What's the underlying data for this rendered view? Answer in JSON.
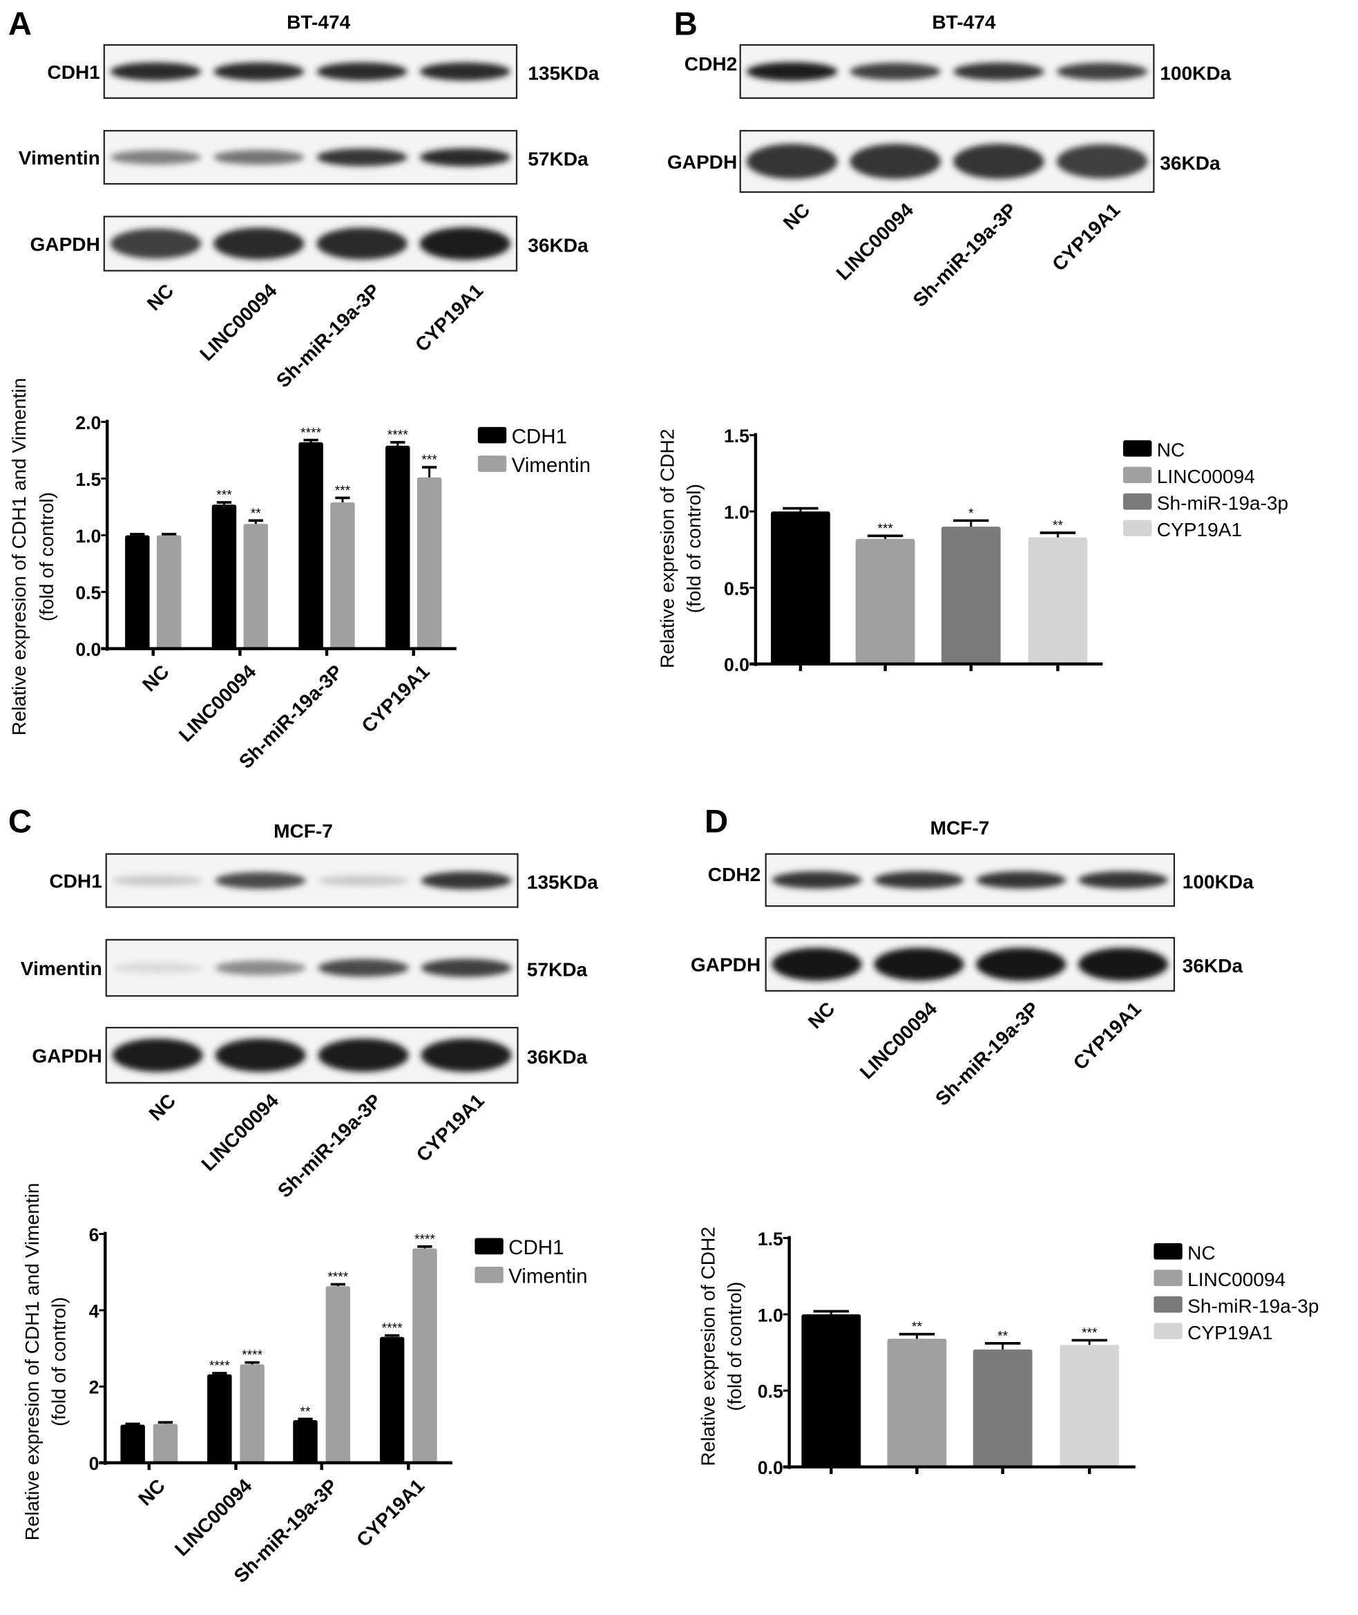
{
  "panels": [
    {
      "letter": "A",
      "title": "BT-474",
      "lanes": [
        "NC",
        "LINC00094",
        "Sh-miR-19a-3P",
        "CYP19A1"
      ],
      "blots": [
        {
          "protein": "CDH1",
          "kda": "135KDa",
          "intensity": [
            0.9,
            0.9,
            0.9,
            0.9
          ]
        },
        {
          "protein": "Vimentin",
          "kda": "57KDa",
          "intensity": [
            0.5,
            0.55,
            0.85,
            0.9
          ]
        },
        {
          "protein": "GAPDH",
          "kda": "36KDa",
          "intensity": [
            0.8,
            0.9,
            0.9,
            0.95
          ]
        }
      ]
    },
    {
      "letter": "B",
      "title": "BT-474",
      "lanes": [
        "NC",
        "LINC00094",
        "Sh-miR-19a-3P",
        "CYP19A1"
      ],
      "blots": [
        {
          "protein": "CDH2",
          "kda": "100KDa",
          "intensity": [
            0.95,
            0.8,
            0.85,
            0.8
          ]
        },
        {
          "protein": "GAPDH",
          "kda": "36KDa",
          "intensity": [
            0.85,
            0.85,
            0.85,
            0.8
          ]
        }
      ]
    },
    {
      "letter": "C",
      "title": "MCF-7",
      "lanes": [
        "NC",
        "LINC00094",
        "Sh-miR-19a-3P",
        "CYP19A1"
      ],
      "blots": [
        {
          "protein": "CDH1",
          "kda": "135KDa",
          "intensity": [
            0.15,
            0.75,
            0.15,
            0.85
          ]
        },
        {
          "protein": "Vimentin",
          "kda": "57KDa",
          "intensity": [
            0.08,
            0.45,
            0.75,
            0.8
          ]
        },
        {
          "protein": "GAPDH",
          "kda": "36KDa",
          "intensity": [
            0.95,
            0.95,
            0.95,
            0.95
          ]
        }
      ]
    },
    {
      "letter": "D",
      "title": "MCF-7",
      "lanes": [
        "NC",
        "LINC00094",
        "Sh-miR-19a-3P",
        "CYP19A1"
      ],
      "blots": [
        {
          "protein": "CDH2",
          "kda": "100KDa",
          "intensity": [
            0.85,
            0.85,
            0.85,
            0.85
          ]
        },
        {
          "protein": "GAPDH",
          "kda": "36KDa",
          "intensity": [
            1,
            1,
            1,
            1
          ]
        }
      ]
    }
  ],
  "colors": {
    "CDH1": "#000000",
    "Vimentin": "#a0a0a2",
    "NC": "#000000",
    "LINC00094": "#a0a0a2",
    "Sh-miR-19a-3p": "#7a7a7a",
    "CYP19A1": "#d4d4d4"
  },
  "chart_data": [
    {
      "type": "bar",
      "panel": "A",
      "title": "",
      "ylabel": [
        "Relative expresion of CDH1 and Vimentin",
        "(fold of control)"
      ],
      "categories": [
        "NC",
        "LINC00094",
        "Sh-miR-19a-3P",
        "CYP19A1"
      ],
      "ylim": [
        0,
        2.0
      ],
      "yticks": [
        "0.0",
        "0.5",
        "1.0",
        "1.5",
        "2.0"
      ],
      "ytick_values": [
        0,
        0.5,
        1.0,
        1.5,
        2.0
      ],
      "legend": "right",
      "series": [
        {
          "name": "CDH1",
          "values": [
            1.0,
            1.27,
            1.82,
            1.79
          ],
          "errors": [
            0.01,
            0.02,
            0.02,
            0.03
          ],
          "sig": [
            "",
            "***",
            "****",
            "****"
          ]
        },
        {
          "name": "Vimentin",
          "values": [
            1.0,
            1.1,
            1.29,
            1.51
          ],
          "errors": [
            0.01,
            0.03,
            0.04,
            0.09
          ],
          "sig": [
            "",
            "**",
            "***",
            "***"
          ]
        }
      ]
    },
    {
      "type": "bar",
      "panel": "B",
      "title": "",
      "ylabel": [
        "Relative expresion of CDH2",
        "(fold of control)"
      ],
      "categories": [
        "NC",
        "LINC00094",
        "Sh-miR-19a-3p",
        "CYP19A1"
      ],
      "ylim": [
        0,
        1.5
      ],
      "yticks": [
        "0.0",
        "0.5",
        "1.0",
        "1.5"
      ],
      "ytick_values": [
        0,
        0.5,
        1.0,
        1.5
      ],
      "legend": "right",
      "series": [
        {
          "name": "Relative expression",
          "values": [
            1.0,
            0.82,
            0.9,
            0.83
          ],
          "errors": [
            0.02,
            0.02,
            0.04,
            0.03
          ],
          "sig": [
            "",
            "***",
            "*",
            "**"
          ]
        }
      ]
    },
    {
      "type": "bar",
      "panel": "C",
      "title": "",
      "ylabel": [
        "Relative expresion of CDH1 and Vimentin",
        "(fold of control)"
      ],
      "categories": [
        "NC",
        "LINC00094",
        "Sh-miR-19a-3P",
        "CYP19A1"
      ],
      "ylim": [
        0,
        6
      ],
      "yticks": [
        "0",
        "2",
        "4",
        "6"
      ],
      "ytick_values": [
        0,
        2,
        4,
        6
      ],
      "legend": "right",
      "series": [
        {
          "name": "CDH1",
          "values": [
            1.0,
            2.32,
            1.12,
            3.3
          ],
          "errors": [
            0.02,
            0.03,
            0.03,
            0.04
          ],
          "sig": [
            "",
            "****",
            "**",
            "****"
          ]
        },
        {
          "name": "Vimentin",
          "values": [
            1.02,
            2.58,
            4.63,
            5.62
          ],
          "errors": [
            0.04,
            0.05,
            0.05,
            0.05
          ],
          "sig": [
            "",
            "****",
            "****",
            "****"
          ]
        }
      ]
    },
    {
      "type": "bar",
      "panel": "D",
      "title": "",
      "ylabel": [
        "Relative expresion of CDH2",
        "(fold of control)"
      ],
      "categories": [
        "NC",
        "LINC00094",
        "Sh-miR-19a-3p",
        "CYP19A1"
      ],
      "ylim": [
        0,
        1.5
      ],
      "yticks": [
        "0.0",
        "0.5",
        "1.0",
        "1.5"
      ],
      "ytick_values": [
        0,
        0.5,
        1.0,
        1.5
      ],
      "legend": "right",
      "series": [
        {
          "name": "Relative expression",
          "values": [
            1.0,
            0.84,
            0.77,
            0.8
          ],
          "errors": [
            0.02,
            0.03,
            0.04,
            0.03
          ],
          "sig": [
            "",
            "**",
            "**",
            "***"
          ]
        }
      ]
    }
  ]
}
